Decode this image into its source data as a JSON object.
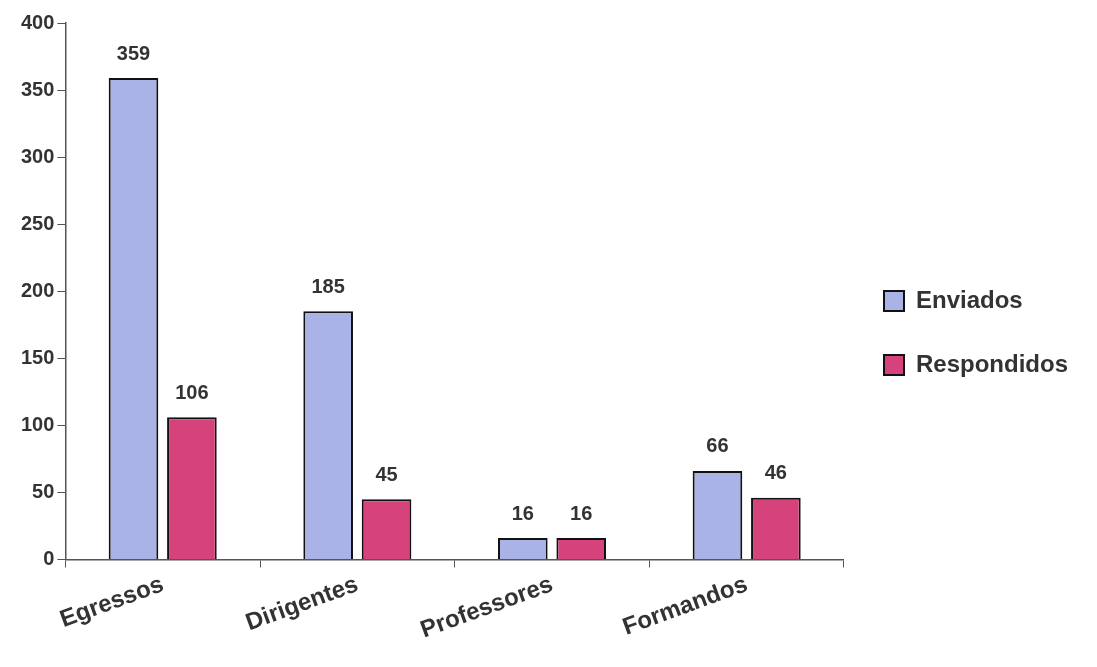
{
  "chart_data": {
    "type": "bar",
    "categories": [
      "Egressos",
      "Dirigentes",
      "Professores",
      "Formandos"
    ],
    "series": [
      {
        "name": "Enviados",
        "color": "#a9b3e6",
        "values": [
          359,
          185,
          16,
          66
        ]
      },
      {
        "name": "Respondidos",
        "color": "#d6437c",
        "values": [
          106,
          45,
          16,
          46
        ]
      }
    ],
    "ylim": [
      0,
      400
    ],
    "yticks": [
      0,
      50,
      100,
      150,
      200,
      250,
      300,
      350,
      400
    ],
    "grid": false,
    "legend": "right",
    "data_labels": true
  }
}
